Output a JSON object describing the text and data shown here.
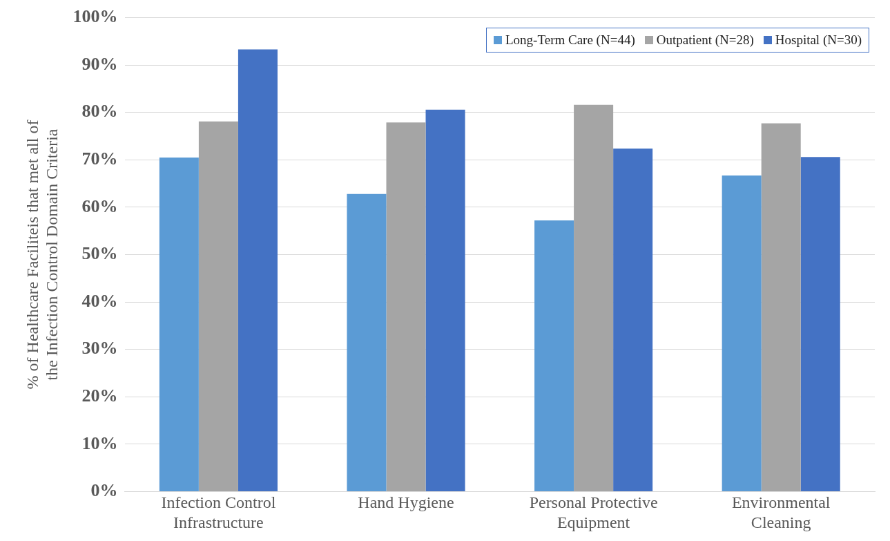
{
  "chart_data": {
    "type": "bar",
    "ylabel": "% of Healthcare Faciliteis that met all of the Infection Control Domain Criteria",
    "categories": [
      "Infection Control Infrastructure",
      "Hand Hygiene",
      "Personal Protective Equipment",
      "Environmental Cleaning"
    ],
    "series": [
      {
        "name": "Long-Term Care (N=44)",
        "color": "#5b9bd5",
        "values": [
          70.5,
          62.8,
          57.2,
          66.7
        ]
      },
      {
        "name": "Outpatient (N=28)",
        "color": "#a5a5a5",
        "values": [
          78.1,
          77.9,
          81.6,
          77.7
        ]
      },
      {
        "name": "Hospital (N=30)",
        "color": "#4472c4",
        "values": [
          93.3,
          80.6,
          72.4,
          70.6
        ]
      }
    ],
    "ylim": [
      0,
      100
    ],
    "yticks": [
      {
        "value": 0,
        "label": "0%"
      },
      {
        "value": 10,
        "label": "10%"
      },
      {
        "value": 20,
        "label": "20%"
      },
      {
        "value": 30,
        "label": "30%"
      },
      {
        "value": 40,
        "label": "40%"
      },
      {
        "value": 50,
        "label": "50%"
      },
      {
        "value": 60,
        "label": "60%"
      },
      {
        "value": 70,
        "label": "70%"
      },
      {
        "value": 80,
        "label": "80%"
      },
      {
        "value": 90,
        "label": "90%"
      },
      {
        "value": 100,
        "label": "100%"
      }
    ],
    "grid": "y",
    "legend": "top right"
  }
}
